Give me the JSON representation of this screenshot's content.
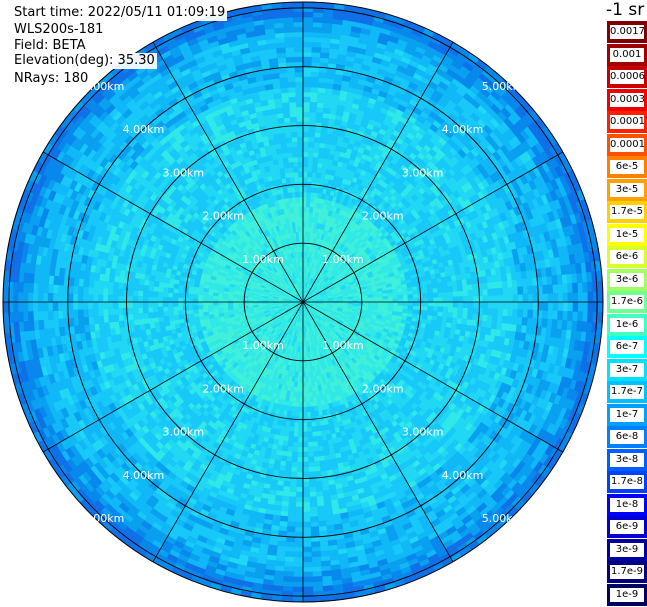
{
  "info": {
    "start_time": "Start time: 2022/05/11 01:09:19",
    "instrument": "WLS200s-181",
    "field": "Field: BETA",
    "elevation": "Elevation(deg): 35.30",
    "nrays": "NRays: 180"
  },
  "unit_label": "-1 sr",
  "range_rings": [
    {
      "km": 1,
      "label": "1.00km"
    },
    {
      "km": 2,
      "label": "2.00km"
    },
    {
      "km": 3,
      "label": "3.00km"
    },
    {
      "km": 4,
      "label": "4.00km"
    },
    {
      "km": 5,
      "label": "5.00km"
    }
  ],
  "max_range_km": 5.1,
  "radials_deg": [
    0,
    30,
    60,
    90,
    120,
    150
  ],
  "colorbar": {
    "labels": [
      "0.0017",
      "0.001",
      "0.0006",
      "0.0003",
      "0.00017",
      "0.0001",
      "6e-5",
      "3e-5",
      "1.7e-5",
      "1e-5",
      "6e-6",
      "3e-6",
      "1.7e-6",
      "1e-6",
      "6e-7",
      "3e-7",
      "1.7e-7",
      "1e-7",
      "6e-8",
      "3e-8",
      "1.7e-8",
      "1e-8",
      "6e-9",
      "3e-9",
      "1.7e-9",
      "1e-9"
    ],
    "colors": [
      "#800000",
      "#a00000",
      "#c80000",
      "#f00000",
      "#ff2000",
      "#ff5000",
      "#ff8000",
      "#ffa000",
      "#ffd000",
      "#ffff00",
      "#d8ff28",
      "#a0ff60",
      "#70ff90",
      "#40ffc0",
      "#00ffff",
      "#00e0ff",
      "#00c0ff",
      "#00a0ff",
      "#0080ff",
      "#0060ff",
      "#0040ff",
      "#0000ff",
      "#0000d0",
      "#0000a0",
      "#000080",
      "#000060"
    ]
  },
  "colors": {
    "ring": "#000000",
    "outer_edge": "#3070ff",
    "inner": "#30f0e0",
    "mid": "#20d0f8",
    "outer": "#10a8f4"
  }
}
